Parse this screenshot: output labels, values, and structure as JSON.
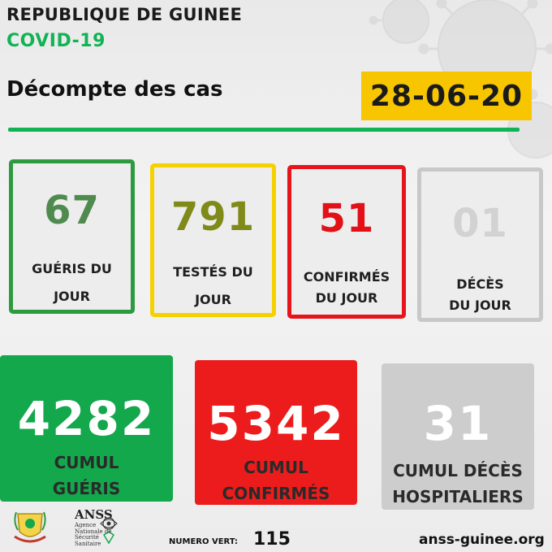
{
  "header": {
    "country": "REPUBLIQUE DE GUINEE",
    "campaign": "COVID-19",
    "title": "Décompte des cas",
    "date": "28-06-20"
  },
  "daily_cards": [
    {
      "value": "67",
      "label_line1": "GUÉRIS DU",
      "label_line2": "JOUR",
      "color": "#2e9a3f",
      "num_color": "#4f8a4f"
    },
    {
      "value": "791",
      "label_line1": "TESTÉS DU",
      "label_line2": "JOUR",
      "color": "#f5d100",
      "num_color": "#7f8a19"
    },
    {
      "value": "51",
      "label_line1": "CONFIRMÉS",
      "label_line2": "DU JOUR",
      "color": "#e8141b",
      "num_color": "#e41017"
    },
    {
      "value": "01",
      "label_line1": "DÉCÈS",
      "label_line2": "DU JOUR",
      "color": "#c8c8c8",
      "num_color": "#d2d2d2"
    }
  ],
  "cumulative_cards": [
    {
      "value": "4282",
      "label_line1": "CUMUL",
      "label_line2": "GUÉRIS",
      "color": "#12a84b"
    },
    {
      "value": "5342",
      "label_line1": "CUMUL",
      "label_line2": "CONFIRMÉS",
      "color": "#ed1c1c"
    },
    {
      "value": "31",
      "label_line1": "CUMUL DÉCÈS",
      "label_line2": "HOSPITALIERS",
      "color": "#cdcdcd"
    }
  ],
  "footer": {
    "anss_name": "ANSS",
    "anss_line1": "Agence",
    "anss_line2": "Nationale de",
    "anss_line3": "Sécurité",
    "anss_line4": "Sanitaire",
    "numero_label": "NUMERO VERT:",
    "numero_value": "115",
    "website": "anss-guinee.org"
  },
  "icons": [
    "virus-background-icon",
    "coat-of-arms-icon",
    "anss-logo-icon"
  ]
}
